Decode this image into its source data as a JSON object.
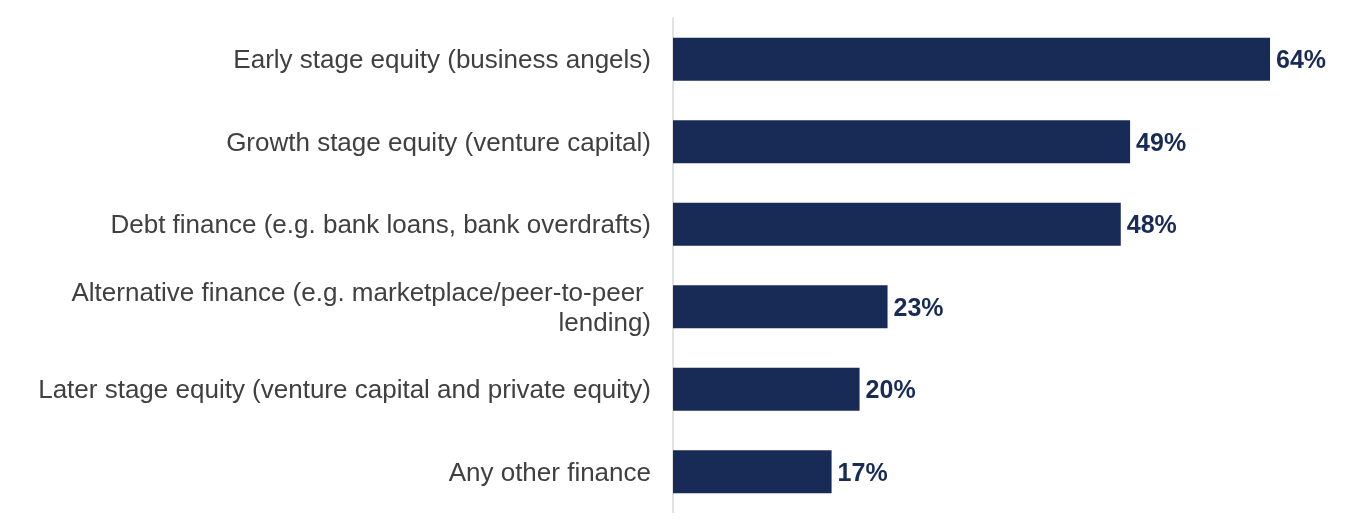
{
  "chart_data": {
    "type": "bar",
    "orientation": "horizontal",
    "categories": [
      "Early stage equity (business angels)",
      "Growth stage equity (venture capital)",
      "Debt finance (e.g. bank loans, bank overdrafts)",
      "Alternative finance (e.g. marketplace/peer-to-peer lending)",
      "Later stage equity (venture capital and private equity)",
      "Any other finance"
    ],
    "values": [
      64,
      49,
      48,
      23,
      20,
      17
    ],
    "value_labels": [
      "64%",
      "49%",
      "48%",
      "23%",
      "20%",
      "17%"
    ],
    "color": "#182a56"
  }
}
